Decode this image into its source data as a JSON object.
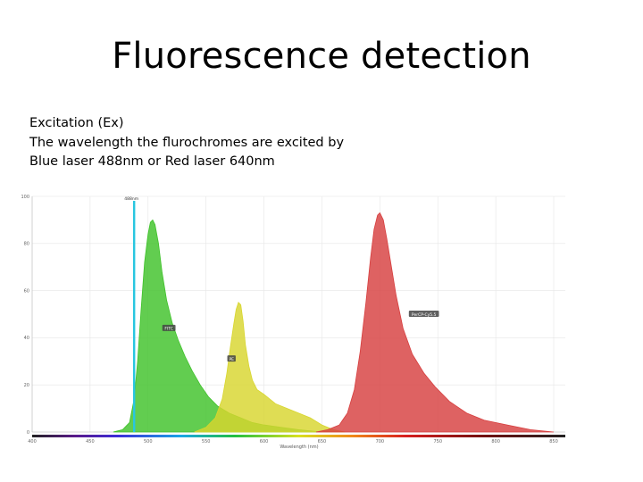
{
  "slide": {
    "title": "Fluorescence detection",
    "lines": [
      "Excitation (Ex)",
      "The wavelength the flurochromes are excited by",
      "Blue laser 488nm or Red laser 640nm"
    ]
  },
  "chart_data": {
    "type": "area",
    "xlabel": "Wavelength (nm)",
    "ylabel": "",
    "xlim": [
      400,
      860
    ],
    "ylim": [
      0,
      100
    ],
    "x_ticks": [
      400,
      450,
      500,
      550,
      600,
      650,
      700,
      750,
      800,
      850
    ],
    "y_ticks": [
      0,
      20,
      40,
      60,
      80,
      100
    ],
    "laser": {
      "name": "488nm",
      "wavelength": 488,
      "color": "#29c6e0"
    },
    "series": [
      {
        "name": "FITC",
        "color": "#3fc22a",
        "label_at": [
          518,
          44
        ],
        "points": [
          [
            470,
            0
          ],
          [
            478,
            1
          ],
          [
            484,
            4
          ],
          [
            488,
            14
          ],
          [
            491,
            30
          ],
          [
            494,
            52
          ],
          [
            497,
            72
          ],
          [
            500,
            84
          ],
          [
            502,
            89
          ],
          [
            504,
            90
          ],
          [
            506,
            88
          ],
          [
            509,
            80
          ],
          [
            512,
            68
          ],
          [
            516,
            56
          ],
          [
            521,
            46
          ],
          [
            526,
            39
          ],
          [
            532,
            32
          ],
          [
            538,
            26
          ],
          [
            545,
            20
          ],
          [
            552,
            15
          ],
          [
            560,
            11
          ],
          [
            570,
            8
          ],
          [
            580,
            6
          ],
          [
            590,
            4
          ],
          [
            600,
            3
          ],
          [
            615,
            2
          ],
          [
            630,
            1
          ],
          [
            650,
            0
          ]
        ]
      },
      {
        "name": "PE",
        "color": "#d8d62e",
        "label_at": [
          572,
          31
        ],
        "points": [
          [
            540,
            0
          ],
          [
            550,
            2
          ],
          [
            558,
            6
          ],
          [
            564,
            14
          ],
          [
            568,
            25
          ],
          [
            571,
            36
          ],
          [
            574,
            46
          ],
          [
            576,
            52
          ],
          [
            578,
            55
          ],
          [
            580,
            54
          ],
          [
            582,
            47
          ],
          [
            584,
            37
          ],
          [
            587,
            28
          ],
          [
            590,
            22
          ],
          [
            594,
            18
          ],
          [
            600,
            16
          ],
          [
            610,
            12
          ],
          [
            620,
            10
          ],
          [
            630,
            8
          ],
          [
            640,
            6
          ],
          [
            650,
            3
          ],
          [
            660,
            1
          ],
          [
            670,
            0
          ]
        ]
      },
      {
        "name": "PerCP-Cy5.5",
        "color": "#d73f3f",
        "label_at": [
          738,
          50
        ],
        "points": [
          [
            645,
            0
          ],
          [
            655,
            1
          ],
          [
            665,
            3
          ],
          [
            672,
            8
          ],
          [
            678,
            18
          ],
          [
            683,
            34
          ],
          [
            688,
            55
          ],
          [
            692,
            74
          ],
          [
            695,
            86
          ],
          [
            698,
            92
          ],
          [
            700,
            93
          ],
          [
            703,
            90
          ],
          [
            706,
            82
          ],
          [
            710,
            70
          ],
          [
            714,
            58
          ],
          [
            720,
            44
          ],
          [
            728,
            33
          ],
          [
            738,
            25
          ],
          [
            748,
            19
          ],
          [
            760,
            13
          ],
          [
            775,
            8
          ],
          [
            790,
            5
          ],
          [
            810,
            3
          ],
          [
            830,
            1
          ],
          [
            850,
            0
          ]
        ]
      }
    ]
  }
}
